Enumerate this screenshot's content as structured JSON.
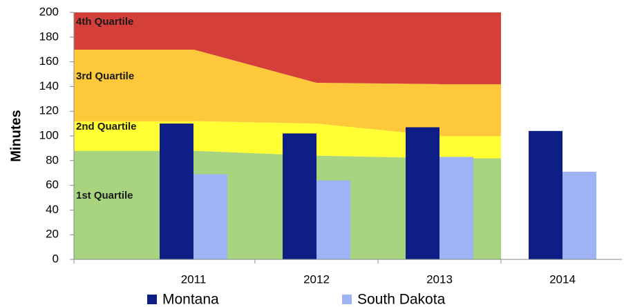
{
  "chart_data": {
    "type": "bar",
    "y_label": "Minutes",
    "categories": [
      "2011",
      "2012",
      "2013",
      "2014"
    ],
    "areas": [
      {
        "name": "1st Quartile",
        "color": "#a9d47f",
        "values": [
          88,
          84,
          82,
          null
        ]
      },
      {
        "name": "2nd Quartile",
        "color": "#ffff33",
        "values": [
          24,
          26,
          18,
          null
        ]
      },
      {
        "name": "3rd Quartile",
        "color": "#fdc93a",
        "values": [
          58,
          33,
          42,
          null
        ]
      },
      {
        "name": "4th Quartile",
        "color": "#d43f3a",
        "values": [
          30,
          57,
          58,
          null
        ]
      }
    ],
    "series": [
      {
        "name": "Montana",
        "color": "#0d1e85",
        "values": [
          110,
          102,
          107,
          104
        ]
      },
      {
        "name": "South Dakota",
        "color": "#9db3f5",
        "values": [
          69,
          64,
          83,
          71
        ]
      }
    ],
    "ylim": [
      0,
      200
    ],
    "yticks": [
      0,
      20,
      40,
      60,
      80,
      100,
      120,
      140,
      160,
      180,
      200
    ],
    "grid": false
  }
}
